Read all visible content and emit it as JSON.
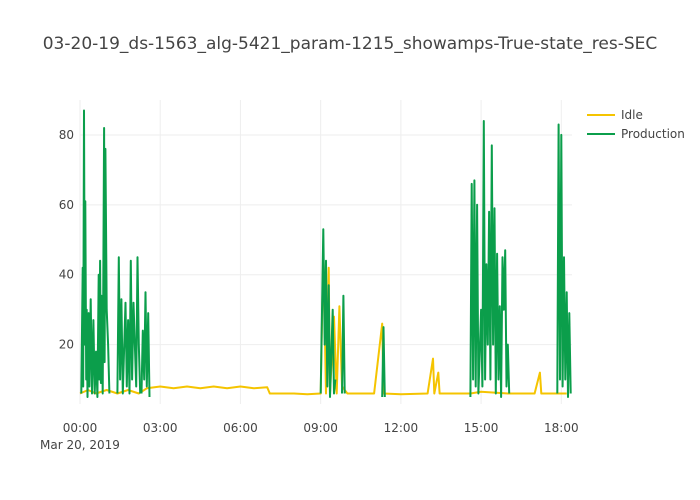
{
  "chart_data": {
    "type": "line",
    "title": "03-20-19_ds-1563_alg-5421_param-1215_showamps-True-state_res-SEC",
    "xlabel": "",
    "ylabel": "",
    "date_label": "Mar 20, 2019",
    "xlim_hours": [
      0,
      18.4
    ],
    "ylim": [
      3,
      90
    ],
    "grid": true,
    "legend_position": "top-right",
    "x_ticks": [
      {
        "value": 0,
        "label": "00:00"
      },
      {
        "value": 3,
        "label": "03:00"
      },
      {
        "value": 6,
        "label": "06:00"
      },
      {
        "value": 9,
        "label": "09:00"
      },
      {
        "value": 12,
        "label": "12:00"
      },
      {
        "value": 15,
        "label": "15:00"
      },
      {
        "value": 18,
        "label": "18:00"
      }
    ],
    "y_ticks": [
      {
        "value": 20,
        "label": "20"
      },
      {
        "value": 40,
        "label": "40"
      },
      {
        "value": 60,
        "label": "60"
      },
      {
        "value": 80,
        "label": "80"
      }
    ],
    "series": [
      {
        "name": "Idle",
        "color": "#f5c400",
        "segments": [
          [
            [
              0.0,
              6
            ],
            [
              0.3,
              7
            ],
            [
              0.6,
              6
            ],
            [
              1.0,
              7
            ],
            [
              1.4,
              6
            ],
            [
              1.8,
              7
            ],
            [
              2.2,
              6
            ],
            [
              2.5,
              7.5
            ],
            [
              3.0,
              8
            ],
            [
              3.5,
              7.5
            ],
            [
              4.0,
              8
            ],
            [
              4.5,
              7.5
            ],
            [
              5.0,
              8
            ],
            [
              5.5,
              7.5
            ],
            [
              6.0,
              8
            ],
            [
              6.5,
              7.5
            ],
            [
              7.0,
              7.8
            ],
            [
              7.1,
              6
            ],
            [
              8.0,
              6
            ],
            [
              8.5,
              5.8
            ],
            [
              9.0,
              6
            ],
            [
              9.1,
              47
            ],
            [
              9.2,
              6
            ],
            [
              9.3,
              42
            ],
            [
              9.35,
              6
            ],
            [
              9.5,
              28
            ],
            [
              9.6,
              6
            ],
            [
              9.7,
              31
            ],
            [
              9.8,
              8
            ],
            [
              10.0,
              6
            ],
            [
              11.0,
              6
            ],
            [
              11.3,
              26
            ],
            [
              11.35,
              6
            ],
            [
              12.0,
              5.8
            ],
            [
              13.0,
              6
            ],
            [
              13.2,
              16
            ],
            [
              13.25,
              6
            ],
            [
              13.4,
              12
            ],
            [
              13.45,
              6
            ],
            [
              14.0,
              6
            ],
            [
              14.6,
              6
            ],
            [
              15.0,
              6.5
            ],
            [
              16.0,
              6
            ],
            [
              17.0,
              6
            ],
            [
              17.2,
              12
            ],
            [
              17.25,
              6
            ],
            [
              17.8,
              6
            ],
            [
              18.2,
              6
            ]
          ]
        ]
      },
      {
        "name": "Production",
        "color": "#0b9e4b",
        "segments": [
          [
            [
              0.05,
              6
            ],
            [
              0.1,
              42
            ],
            [
              0.12,
              8
            ],
            [
              0.15,
              87
            ],
            [
              0.18,
              20
            ],
            [
              0.2,
              61
            ],
            [
              0.23,
              10
            ],
            [
              0.25,
              30
            ],
            [
              0.28,
              5
            ],
            [
              0.32,
              29
            ],
            [
              0.35,
              8
            ],
            [
              0.4,
              33
            ],
            [
              0.45,
              6
            ],
            [
              0.5,
              27
            ],
            [
              0.55,
              6
            ],
            [
              0.6,
              18
            ],
            [
              0.65,
              5
            ],
            [
              0.7,
              40
            ],
            [
              0.72,
              10
            ],
            [
              0.75,
              44
            ],
            [
              0.78,
              9
            ],
            [
              0.8,
              34
            ],
            [
              0.85,
              6
            ],
            [
              0.9,
              82
            ],
            [
              0.92,
              15
            ],
            [
              0.95,
              76
            ],
            [
              1.0,
              30
            ],
            [
              1.05,
              20
            ],
            [
              1.1,
              6
            ]
          ],
          [
            [
              1.4,
              6
            ],
            [
              1.45,
              45
            ],
            [
              1.5,
              10
            ],
            [
              1.55,
              33
            ],
            [
              1.6,
              6
            ],
            [
              1.7,
              32
            ],
            [
              1.75,
              8
            ],
            [
              1.8,
              27
            ],
            [
              1.85,
              6
            ],
            [
              1.9,
              44
            ],
            [
              1.95,
              10
            ],
            [
              2.0,
              32
            ],
            [
              2.1,
              8
            ],
            [
              2.15,
              45
            ],
            [
              2.2,
              20
            ],
            [
              2.25,
              6
            ]
          ],
          [
            [
              2.3,
              6
            ],
            [
              2.35,
              24
            ],
            [
              2.4,
              10
            ],
            [
              2.45,
              35
            ],
            [
              2.5,
              8
            ],
            [
              2.55,
              29
            ],
            [
              2.6,
              5
            ]
          ],
          [
            [
              9.0,
              6
            ],
            [
              9.1,
              53
            ],
            [
              9.15,
              20
            ],
            [
              9.2,
              44
            ],
            [
              9.25,
              8
            ],
            [
              9.3,
              37
            ],
            [
              9.35,
              5
            ],
            [
              9.45,
              30
            ],
            [
              9.5,
              6
            ],
            [
              9.55,
              10
            ]
          ],
          [
            [
              9.8,
              6
            ],
            [
              9.85,
              34
            ],
            [
              9.9,
              6
            ]
          ],
          [
            [
              11.3,
              5
            ],
            [
              11.35,
              25
            ],
            [
              11.4,
              5
            ]
          ],
          [
            [
              14.6,
              5
            ],
            [
              14.65,
              66
            ],
            [
              14.7,
              10
            ],
            [
              14.75,
              67
            ],
            [
              14.8,
              8
            ],
            [
              14.85,
              60
            ],
            [
              14.9,
              6
            ],
            [
              15.0,
              30
            ],
            [
              15.05,
              8
            ],
            [
              15.1,
              84
            ],
            [
              15.15,
              10
            ],
            [
              15.2,
              43
            ],
            [
              15.25,
              20
            ],
            [
              15.3,
              58
            ],
            [
              15.35,
              10
            ],
            [
              15.4,
              77
            ],
            [
              15.45,
              20
            ],
            [
              15.5,
              59
            ],
            [
              15.55,
              6
            ],
            [
              15.6,
              46
            ],
            [
              15.65,
              10
            ],
            [
              15.7,
              31
            ],
            [
              15.75,
              5
            ],
            [
              15.8,
              45
            ],
            [
              15.85,
              30
            ],
            [
              15.9,
              47
            ],
            [
              15.95,
              8
            ],
            [
              16.0,
              20
            ],
            [
              16.05,
              6
            ]
          ],
          [
            [
              17.85,
              6
            ],
            [
              17.9,
              83
            ],
            [
              17.95,
              10
            ],
            [
              18.0,
              80
            ],
            [
              18.05,
              8
            ],
            [
              18.1,
              45
            ],
            [
              18.15,
              10
            ],
            [
              18.2,
              35
            ],
            [
              18.25,
              5
            ],
            [
              18.3,
              29
            ],
            [
              18.35,
              6
            ]
          ]
        ]
      }
    ]
  }
}
